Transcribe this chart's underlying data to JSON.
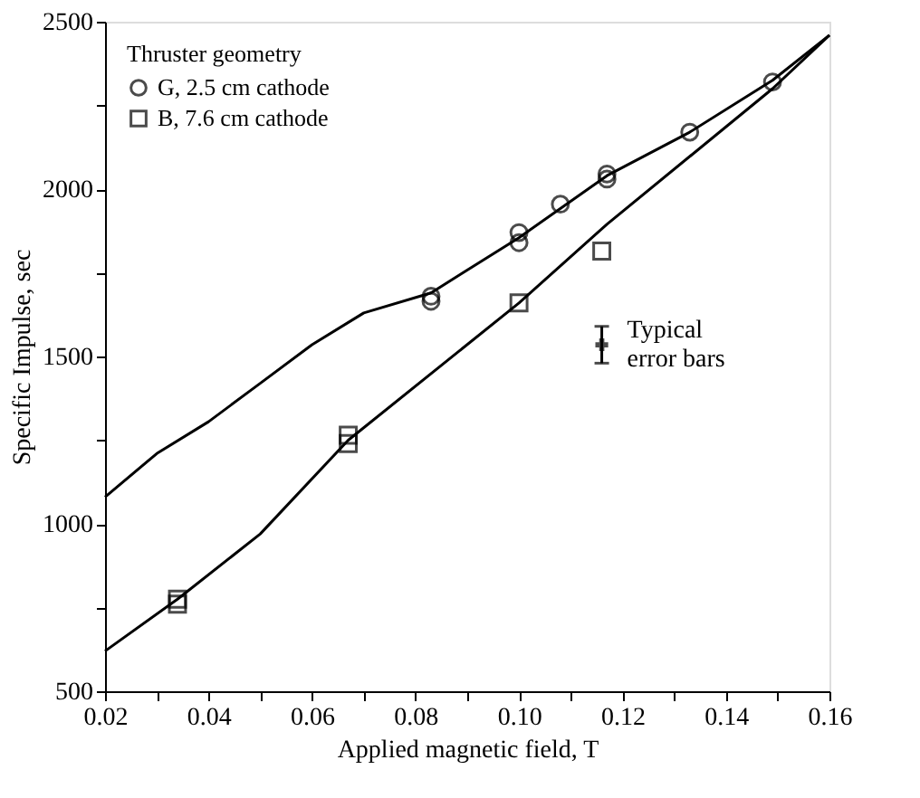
{
  "chart_data": {
    "type": "scatter",
    "xlabel": "Applied magnetic field, T",
    "ylabel": "Specific Impulse, sec",
    "legend_title": "Thruster geometry",
    "legend": "top left",
    "grid": false,
    "xlim": [
      0.02,
      0.16
    ],
    "ylim": [
      500,
      2500
    ],
    "xticks": [
      {
        "value": 0.02,
        "label": "0.02"
      },
      {
        "value": 0.03,
        "label": null
      },
      {
        "value": 0.04,
        "label": "0.04"
      },
      {
        "value": 0.05,
        "label": null
      },
      {
        "value": 0.06,
        "label": "0.06"
      },
      {
        "value": 0.07,
        "label": null
      },
      {
        "value": 0.08,
        "label": "0.08"
      },
      {
        "value": 0.09,
        "label": null
      },
      {
        "value": 0.1,
        "label": "0.10"
      },
      {
        "value": 0.11,
        "label": null
      },
      {
        "value": 0.12,
        "label": "0.12"
      },
      {
        "value": 0.13,
        "label": null
      },
      {
        "value": 0.14,
        "label": "0.14"
      },
      {
        "value": 0.15,
        "label": null
      },
      {
        "value": 0.16,
        "label": "0.16"
      }
    ],
    "yticks": [
      500,
      {
        "value": 750,
        "label": null
      },
      1000,
      {
        "value": 1250,
        "label": null
      },
      1500,
      {
        "value": 1750,
        "label": null
      },
      2000,
      {
        "value": 2250,
        "label": null
      },
      2500
    ],
    "series": [
      {
        "name": "G, 2.5 cm cathode",
        "marker": "circle",
        "color": "#000000",
        "x": [
          0.083,
          0.083,
          0.1,
          0.1,
          0.108,
          0.117,
          0.117,
          0.133,
          0.149
        ],
        "values": [
          1680,
          1665,
          1840,
          1870,
          1955,
          2045,
          2030,
          2170,
          2320
        ]
      },
      {
        "name": "B, 7.6 cm cathode",
        "marker": "square",
        "color": "#000000",
        "x": [
          0.034,
          0.034,
          0.067,
          0.067,
          0.1,
          0.116
        ],
        "values": [
          760,
          775,
          1265,
          1240,
          1660,
          1815
        ]
      },
      {
        "type": "line",
        "line_style": "solid",
        "color": "#000000",
        "x": [
          0.02,
          0.03,
          0.04,
          0.05,
          0.06,
          0.07,
          0.083,
          0.1,
          0.117,
          0.133,
          0.149,
          0.16
        ],
        "values": [
          1080,
          1210,
          1305,
          1420,
          1535,
          1630,
          1690,
          1855,
          2040,
          2170,
          2325,
          2460
        ]
      },
      {
        "type": "line",
        "line_style": "solid",
        "color": "#000000",
        "x": [
          0.02,
          0.034,
          0.05,
          0.067,
          0.1,
          0.117,
          0.149,
          0.16
        ],
        "values": [
          620,
          775,
          970,
          1250,
          1660,
          1895,
          2300,
          2460
        ]
      },
      {
        "marker": "cross",
        "color": "#000000",
        "x": [
          0.116
        ],
        "values": [
          1535
        ],
        "errors": [
          [
            1480,
            1590
          ]
        ]
      }
    ],
    "annotations": [
      {
        "text": "Typical\nerror bars",
        "x": 0.116,
        "y": 1535
      }
    ]
  }
}
